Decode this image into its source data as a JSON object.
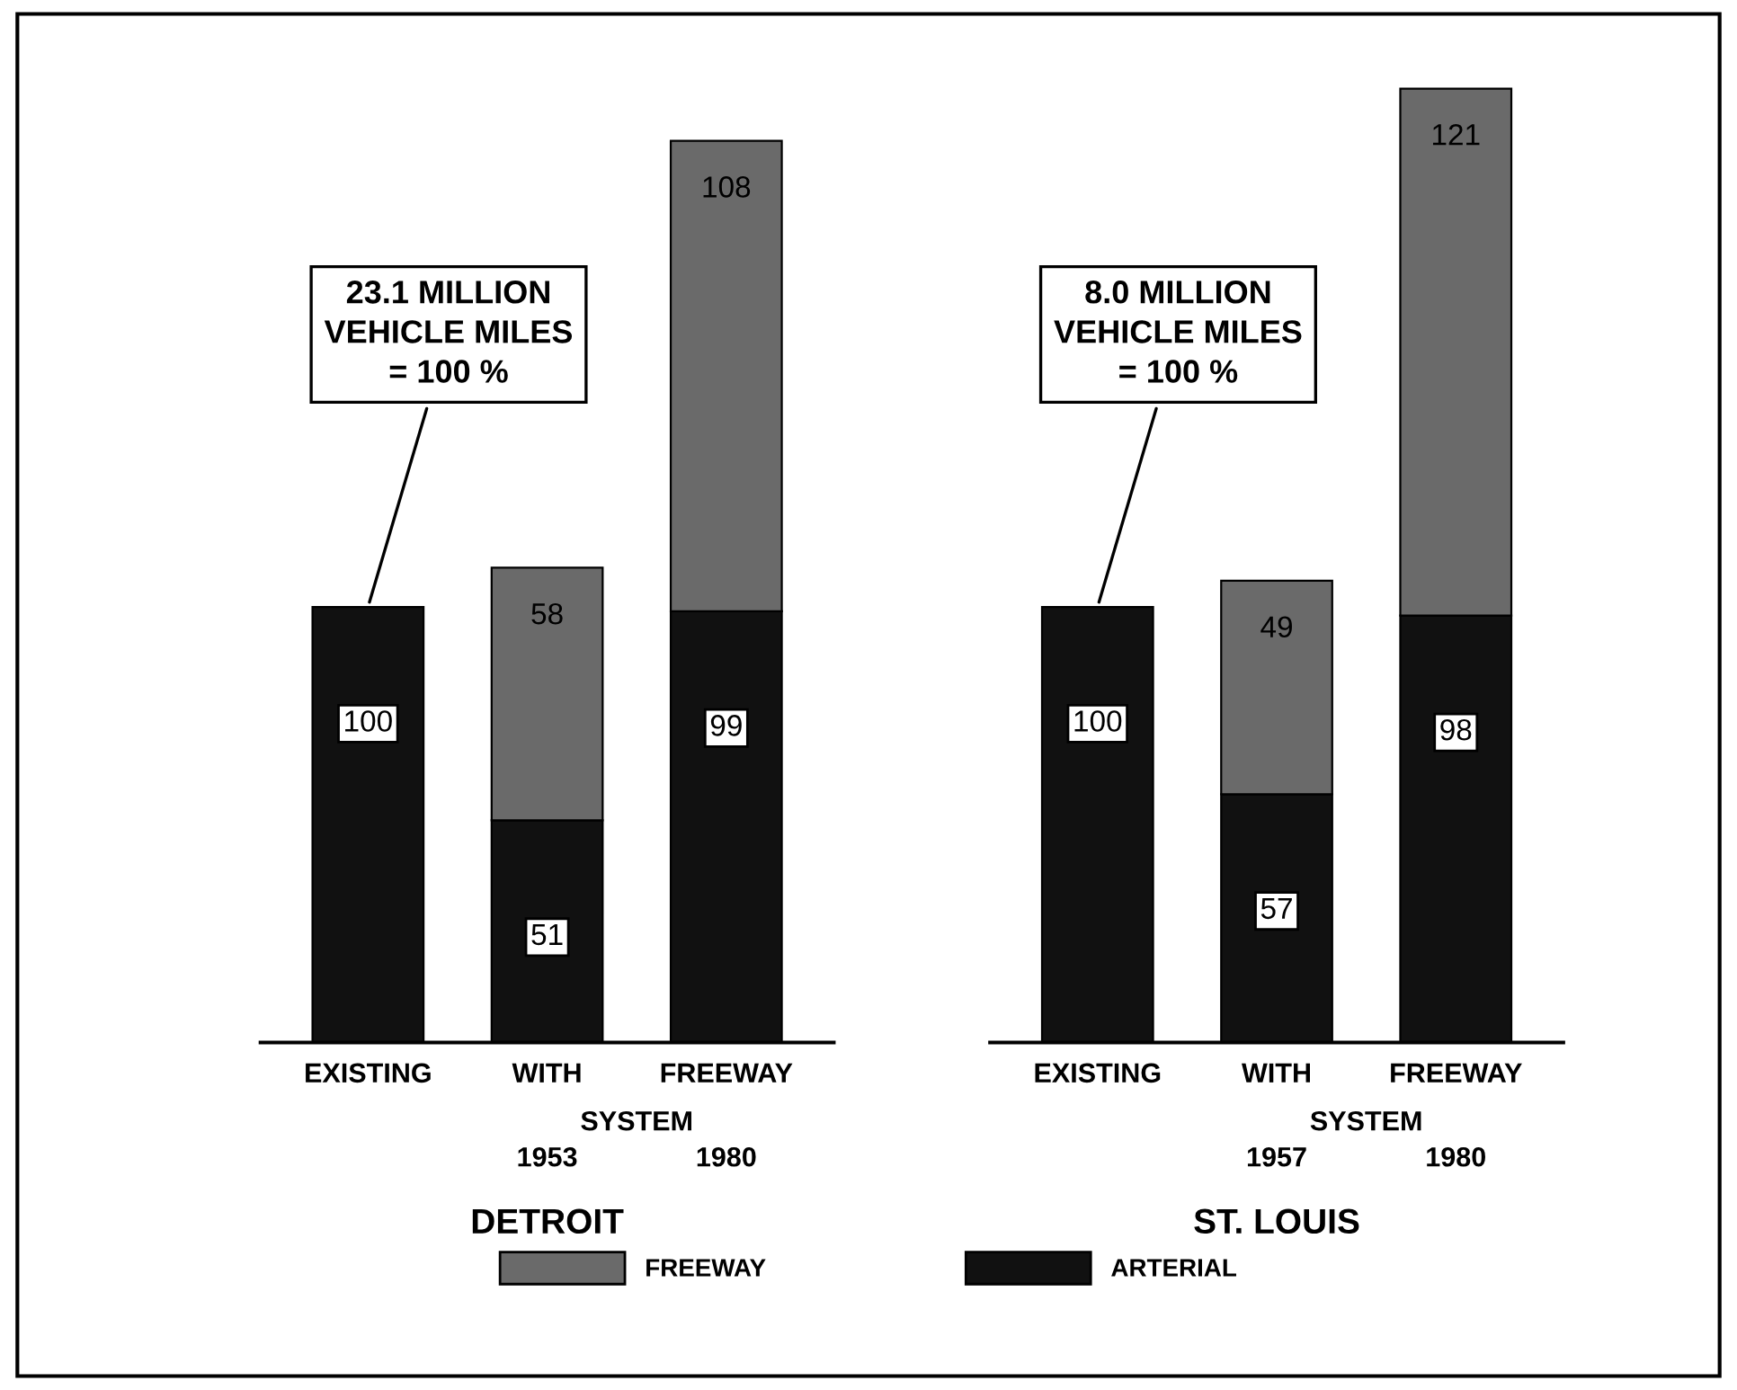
{
  "chart_data": [
    {
      "type": "bar",
      "stacked": true,
      "categories": [
        "EXISTING",
        "WITH",
        "FREEWAY"
      ],
      "xlabel": "DETROIT",
      "data_labels": true,
      "legend": "bottom",
      "series": [
        {
          "name": "ARTERIAL",
          "color": "#111111",
          "values": [
            100,
            51,
            99
          ]
        },
        {
          "name": "FREEWAY",
          "color": "#6a6a6a",
          "values": [
            null,
            58,
            108
          ]
        }
      ],
      "annotations": [
        {
          "text": "23.1 MILLION\nVEHICLE MILES\n= 100 %",
          "x": "EXISTING",
          "y": 100
        },
        "SYSTEM",
        "1953",
        "1980"
      ]
    },
    {
      "type": "bar",
      "stacked": true,
      "categories": [
        "EXISTING",
        "WITH",
        "FREEWAY"
      ],
      "xlabel": "ST. LOUIS",
      "data_labels": true,
      "series": [
        {
          "color": "#111111",
          "values": [
            100,
            57,
            98
          ]
        },
        {
          "color": "#6a6a6a",
          "values": [
            null,
            49,
            121
          ]
        }
      ],
      "annotations": [
        {
          "text": "8.0 MILLION\nVEHICLE MILES\n= 100 %",
          "x": "EXISTING",
          "y": 100
        },
        "SYSTEM",
        "1957",
        "1980"
      ]
    }
  ]
}
